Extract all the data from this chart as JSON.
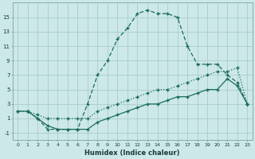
{
  "xlabel": "Humidex (Indice chaleur)",
  "bg_color": "#cce8e8",
  "grid_color": "#aacccc",
  "line_color": "#1a6b5a",
  "xlim": [
    -0.5,
    23.5
  ],
  "ylim": [
    -2,
    17
  ],
  "xticks": [
    0,
    1,
    2,
    3,
    4,
    5,
    6,
    7,
    8,
    9,
    10,
    11,
    12,
    13,
    14,
    15,
    16,
    17,
    18,
    19,
    20,
    21,
    22,
    23
  ],
  "yticks": [
    -1,
    1,
    3,
    5,
    7,
    9,
    11,
    13,
    15
  ],
  "series_main_x": [
    1,
    2,
    3,
    4,
    5,
    6,
    7,
    8,
    9,
    10,
    11,
    12,
    13,
    14,
    15,
    16,
    17,
    18,
    19,
    20,
    21,
    22,
    23
  ],
  "series_main_y": [
    2,
    1,
    -0.5,
    -0.5,
    -0.5,
    -0.5,
    3,
    7,
    9,
    12,
    13.5,
    15.5,
    16,
    15.5,
    15.5,
    15,
    11,
    8.5,
    8.5,
    8.5,
    7,
    6,
    3
  ],
  "series_dot_x": [
    0,
    1,
    2,
    3,
    4,
    5,
    6,
    7,
    8,
    9,
    10,
    11,
    12,
    13,
    14,
    15,
    16,
    17,
    18,
    19,
    20,
    21,
    22,
    23
  ],
  "series_dot_y": [
    2,
    2,
    1.5,
    1,
    1,
    1,
    1,
    1,
    2,
    2.5,
    3,
    3.5,
    4,
    4.5,
    5,
    5,
    5.5,
    6,
    6.5,
    7,
    7.5,
    7.5,
    8,
    3
  ],
  "series_low_x": [
    0,
    1,
    2,
    3,
    4,
    5,
    6,
    7,
    8,
    9,
    10,
    11,
    12,
    13,
    14,
    15,
    16,
    17,
    18,
    19,
    20,
    21,
    22,
    23
  ],
  "series_low_y": [
    2,
    2,
    1,
    0,
    -0.5,
    -0.5,
    -0.5,
    -0.5,
    0.5,
    1,
    1.5,
    2,
    2.5,
    3,
    3,
    3.5,
    4,
    4,
    4.5,
    5,
    5,
    6.5,
    5.5,
    3
  ]
}
